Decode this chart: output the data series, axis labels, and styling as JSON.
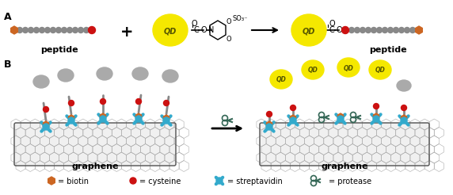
{
  "bg_color": "#ffffff",
  "label_A": "A",
  "label_B": "B",
  "peptide_label": "peptide",
  "graphene_label": "graphene",
  "plus_sign": "+",
  "arrow_label": "",
  "legend": {
    "biotin": "= biotin",
    "cysteine": "= cysteine",
    "streptavidin": "= streptavidin",
    "protease": "= protease"
  },
  "qd_color": "#f5e800",
  "qd_text": "QD",
  "qd_text_color": "#444400",
  "peptide_bead_color": "#888888",
  "biotin_color": "#cc6622",
  "cysteine_color": "#cc1111",
  "graphene_color": "#dddddd",
  "graphene_line_color": "#333333",
  "streptavidin_color": "#33aacc",
  "protease_color": "#336655"
}
